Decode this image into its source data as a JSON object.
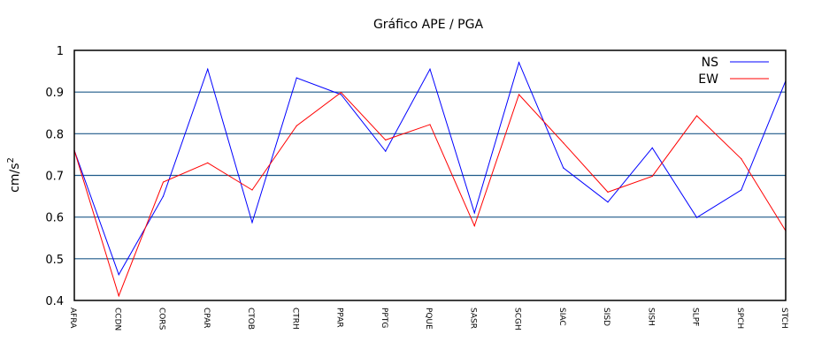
{
  "chart_data": {
    "type": "line",
    "title": "Gráfico  APE / PGA",
    "xlabel": "",
    "ylabel": "cm/s",
    "ylabel_superscript": "2",
    "ylim": [
      0.4,
      1.0
    ],
    "yticks": [
      "0.4",
      "0.5",
      "0.6",
      "0.7",
      "0.8",
      "0.9",
      "1"
    ],
    "grid": "horizontal",
    "legend_position": "top-right",
    "categories": [
      "AFRA",
      "CCDN",
      "CORS",
      "CPAR",
      "CTOB",
      "CTRH",
      "PPAR",
      "PPTG",
      "PQUE",
      "SASR",
      "SCGH",
      "SIAC",
      "SISD",
      "SISH",
      "SLPF",
      "SPCH",
      "STCH"
    ],
    "series": [
      {
        "name": "NS",
        "color": "#0000ff",
        "values": [
          0.76,
          0.462,
          0.65,
          0.955,
          0.587,
          0.934,
          0.894,
          0.758,
          0.955,
          0.61,
          0.971,
          0.718,
          0.636,
          0.766,
          0.599,
          0.665,
          0.927
        ]
      },
      {
        "name": "EW",
        "color": "#ff0000",
        "values": [
          0.76,
          0.411,
          0.684,
          0.73,
          0.665,
          0.819,
          0.899,
          0.785,
          0.822,
          0.579,
          0.894,
          0.778,
          0.66,
          0.698,
          0.843,
          0.74,
          0.567
        ]
      }
    ],
    "grid_color": "#1f5a8a"
  }
}
